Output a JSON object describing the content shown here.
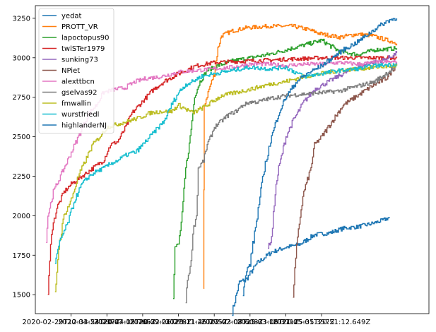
{
  "chart_data": {
    "type": "line",
    "title": "",
    "xlabel": "",
    "ylabel": "",
    "xlim": [
      0,
      11
    ],
    "ylim": [
      1380,
      3330
    ],
    "x_tick_labels": [
      {
        "x": 1,
        "label": "2020-02-29T12:33:54.237Z"
      },
      {
        "x": 2,
        "label": "2020-04-23T20:44:05.765Z"
      },
      {
        "x": 3,
        "label": "2020-07-12T20:32:06.278Z"
      },
      {
        "x": 4,
        "label": "2020-09-21T23:11:45.275Z"
      },
      {
        "x": 5,
        "label": "2020-11-26T02:03:07.608Z"
      },
      {
        "x": 6,
        "label": "2021-02-08T15:33:06.371Z"
      },
      {
        "x": 7,
        "label": "2021-03-18T20:15:35.357Z"
      },
      {
        "x": 8,
        "label": "2021-05-01T20:51:12.649Z"
      }
    ],
    "y_ticks": [
      1500,
      1750,
      2000,
      2250,
      2500,
      2750,
      3000,
      3250
    ],
    "legend_position": "upper-left",
    "grid": false,
    "series": [
      {
        "name": "yedat",
        "color": "#1f77b4",
        "points": [
          [
            5.5,
            1390
          ],
          [
            5.7,
            1580
          ],
          [
            5.9,
            1600
          ],
          [
            6.2,
            1700
          ],
          [
            6.6,
            1770
          ],
          [
            7.0,
            1800
          ],
          [
            7.4,
            1820
          ],
          [
            7.8,
            1880
          ],
          [
            8.2,
            1890
          ],
          [
            8.6,
            1920
          ],
          [
            9.0,
            1930
          ],
          [
            9.4,
            1950
          ],
          [
            9.7,
            1970
          ],
          [
            9.9,
            1990
          ]
        ]
      },
      {
        "name": "PROTT_VR",
        "color": "#ff7f0e",
        "points": [
          [
            4.7,
            1500
          ],
          [
            4.72,
            2700
          ],
          [
            4.85,
            2800
          ],
          [
            5.0,
            2900
          ],
          [
            5.1,
            3060
          ],
          [
            5.2,
            3140
          ],
          [
            5.5,
            3170
          ],
          [
            5.9,
            3190
          ],
          [
            6.5,
            3200
          ],
          [
            7.2,
            3200
          ],
          [
            7.6,
            3180
          ],
          [
            8.0,
            3150
          ],
          [
            8.5,
            3130
          ],
          [
            9.0,
            3150
          ],
          [
            9.4,
            3140
          ],
          [
            9.7,
            3120
          ],
          [
            10.0,
            3100
          ],
          [
            10.1,
            3090
          ]
        ]
      },
      {
        "name": "lapoctopus90",
        "color": "#2ca02c",
        "points": [
          [
            3.85,
            1500
          ],
          [
            3.9,
            1800
          ],
          [
            4.0,
            1820
          ],
          [
            4.1,
            2000
          ],
          [
            4.2,
            2300
          ],
          [
            4.3,
            2450
          ],
          [
            4.4,
            2650
          ],
          [
            4.45,
            2760
          ],
          [
            4.6,
            2850
          ],
          [
            4.8,
            2920
          ],
          [
            5.1,
            2950
          ],
          [
            5.5,
            2980
          ],
          [
            6.0,
            3000
          ],
          [
            6.5,
            3020
          ],
          [
            7.0,
            3050
          ],
          [
            7.5,
            3080
          ],
          [
            8.0,
            3110
          ],
          [
            8.5,
            3040
          ],
          [
            9.0,
            3020
          ],
          [
            9.5,
            3050
          ],
          [
            10.1,
            3060
          ]
        ]
      },
      {
        "name": "twlSTer1979",
        "color": "#d62728",
        "points": [
          [
            0.35,
            1500
          ],
          [
            0.45,
            1900
          ],
          [
            0.6,
            2050
          ],
          [
            0.8,
            2150
          ],
          [
            1.0,
            2200
          ],
          [
            1.3,
            2250
          ],
          [
            1.6,
            2300
          ],
          [
            1.9,
            2350
          ],
          [
            2.1,
            2450
          ],
          [
            2.3,
            2470
          ],
          [
            2.5,
            2550
          ],
          [
            2.7,
            2650
          ],
          [
            2.9,
            2700
          ],
          [
            3.1,
            2750
          ],
          [
            3.3,
            2800
          ],
          [
            3.6,
            2850
          ],
          [
            4.0,
            2900
          ],
          [
            4.5,
            2950
          ],
          [
            5.0,
            2970
          ],
          [
            6.0,
            2980
          ],
          [
            7.0,
            2990
          ],
          [
            8.0,
            3000
          ],
          [
            9.0,
            3000
          ],
          [
            10.1,
            3000
          ]
        ]
      },
      {
        "name": "sunking73",
        "color": "#9467bd",
        "points": [
          [
            6.5,
            1800
          ],
          [
            6.6,
            1850
          ],
          [
            6.7,
            2150
          ],
          [
            6.8,
            2300
          ],
          [
            7.0,
            2500
          ],
          [
            7.2,
            2600
          ],
          [
            7.5,
            2720
          ],
          [
            7.8,
            2800
          ],
          [
            8.2,
            2850
          ],
          [
            8.6,
            2900
          ],
          [
            9.0,
            2940
          ],
          [
            9.4,
            2970
          ],
          [
            9.8,
            2990
          ],
          [
            10.1,
            3030
          ]
        ]
      },
      {
        "name": "NPiet",
        "color": "#8c564b",
        "points": [
          [
            7.2,
            1500
          ],
          [
            7.3,
            1800
          ],
          [
            7.4,
            2000
          ],
          [
            7.5,
            2150
          ],
          [
            7.7,
            2300
          ],
          [
            7.8,
            2450
          ],
          [
            8.0,
            2500
          ],
          [
            8.3,
            2600
          ],
          [
            8.6,
            2700
          ],
          [
            9.0,
            2760
          ],
          [
            9.4,
            2820
          ],
          [
            9.8,
            2870
          ],
          [
            10.1,
            2960
          ]
        ]
      },
      {
        "name": "alexttbcn",
        "color": "#e377c2",
        "points": [
          [
            0.3,
            1850
          ],
          [
            0.35,
            2000
          ],
          [
            0.5,
            2150
          ],
          [
            0.7,
            2250
          ],
          [
            0.9,
            2350
          ],
          [
            1.1,
            2450
          ],
          [
            1.3,
            2550
          ],
          [
            1.5,
            2650
          ],
          [
            1.7,
            2700
          ],
          [
            1.9,
            2780
          ],
          [
            2.2,
            2800
          ],
          [
            2.5,
            2810
          ],
          [
            2.8,
            2850
          ],
          [
            3.1,
            2870
          ],
          [
            3.5,
            2880
          ],
          [
            4.0,
            2910
          ],
          [
            4.5,
            2920
          ],
          [
            5.0,
            2930
          ],
          [
            5.5,
            2940
          ],
          [
            6.0,
            2960
          ],
          [
            6.5,
            2960
          ],
          [
            7.0,
            2950
          ],
          [
            7.5,
            2960
          ],
          [
            8.0,
            2960
          ],
          [
            8.5,
            2970
          ],
          [
            9.0,
            2960
          ],
          [
            9.5,
            2970
          ],
          [
            10.1,
            2975
          ]
        ]
      },
      {
        "name": "gselvas92",
        "color": "#7f7f7f",
        "points": [
          [
            4.2,
            1450
          ],
          [
            4.25,
            1600
          ],
          [
            4.35,
            1700
          ],
          [
            4.4,
            1900
          ],
          [
            4.5,
            2000
          ],
          [
            4.55,
            2300
          ],
          [
            4.7,
            2350
          ],
          [
            4.8,
            2450
          ],
          [
            4.9,
            2500
          ],
          [
            5.0,
            2560
          ],
          [
            5.2,
            2600
          ],
          [
            5.4,
            2640
          ],
          [
            5.6,
            2660
          ],
          [
            5.8,
            2700
          ],
          [
            6.0,
            2720
          ],
          [
            6.2,
            2720
          ],
          [
            6.5,
            2740
          ],
          [
            7.0,
            2760
          ],
          [
            7.5,
            2770
          ],
          [
            8.0,
            2780
          ],
          [
            8.5,
            2790
          ],
          [
            9.0,
            2820
          ],
          [
            9.5,
            2850
          ],
          [
            10.1,
            2950
          ]
        ]
      },
      {
        "name": "fmwallin",
        "color": "#bcbd22",
        "points": [
          [
            0.55,
            1500
          ],
          [
            0.65,
            1800
          ],
          [
            0.8,
            2000
          ],
          [
            1.0,
            2100
          ],
          [
            1.2,
            2250
          ],
          [
            1.4,
            2350
          ],
          [
            1.6,
            2450
          ],
          [
            1.8,
            2500
          ],
          [
            2.0,
            2560
          ],
          [
            2.3,
            2580
          ],
          [
            2.6,
            2600
          ],
          [
            2.9,
            2620
          ],
          [
            3.2,
            2650
          ],
          [
            3.5,
            2660
          ],
          [
            3.8,
            2660
          ],
          [
            4.0,
            2700
          ],
          [
            4.4,
            2650
          ],
          [
            4.8,
            2700
          ],
          [
            5.2,
            2760
          ],
          [
            5.6,
            2780
          ],
          [
            6.0,
            2800
          ],
          [
            6.5,
            2830
          ],
          [
            7.0,
            2850
          ],
          [
            7.5,
            2880
          ],
          [
            8.0,
            2900
          ],
          [
            8.5,
            2920
          ],
          [
            9.0,
            2930
          ],
          [
            9.5,
            2940
          ],
          [
            10.1,
            2950
          ]
        ]
      },
      {
        "name": "wurstfriedl",
        "color": "#17becf",
        "points": [
          [
            0.55,
            1700
          ],
          [
            0.7,
            1850
          ],
          [
            0.9,
            1950
          ],
          [
            1.1,
            2100
          ],
          [
            1.3,
            2200
          ],
          [
            1.5,
            2250
          ],
          [
            1.7,
            2280
          ],
          [
            1.9,
            2300
          ],
          [
            2.1,
            2330
          ],
          [
            2.3,
            2350
          ],
          [
            2.5,
            2380
          ],
          [
            2.7,
            2400
          ],
          [
            2.8,
            2400
          ],
          [
            3.0,
            2450
          ],
          [
            3.2,
            2500
          ],
          [
            3.4,
            2550
          ],
          [
            3.6,
            2600
          ],
          [
            3.8,
            2700
          ],
          [
            4.0,
            2780
          ],
          [
            4.2,
            2830
          ],
          [
            4.4,
            2850
          ],
          [
            4.6,
            2880
          ],
          [
            5.0,
            2900
          ],
          [
            5.5,
            2920
          ],
          [
            6.0,
            2940
          ],
          [
            6.5,
            2930
          ],
          [
            7.0,
            2940
          ],
          [
            7.5,
            2880
          ],
          [
            8.0,
            2900
          ],
          [
            8.5,
            2920
          ],
          [
            9.0,
            2930
          ],
          [
            9.5,
            2950
          ],
          [
            10.1,
            2960
          ]
        ]
      },
      {
        "name": "highlanderNJ",
        "color": "#1f77b4",
        "points": [
          [
            5.8,
            1500
          ],
          [
            5.9,
            1650
          ],
          [
            6.0,
            1700
          ],
          [
            6.2,
            2000
          ],
          [
            6.4,
            2300
          ],
          [
            6.6,
            2500
          ],
          [
            6.8,
            2650
          ],
          [
            7.0,
            2750
          ],
          [
            7.3,
            2850
          ],
          [
            7.6,
            2900
          ],
          [
            8.0,
            2950
          ],
          [
            8.3,
            3000
          ],
          [
            8.6,
            3050
          ],
          [
            9.0,
            3100
          ],
          [
            9.3,
            3150
          ],
          [
            9.6,
            3200
          ],
          [
            9.9,
            3240
          ],
          [
            10.1,
            3250
          ]
        ]
      }
    ]
  }
}
